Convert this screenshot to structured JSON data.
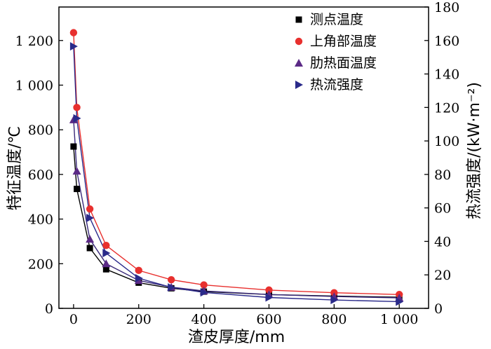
{
  "chart_data": {
    "type": "line",
    "xlabel": "渣皮厚度/mm",
    "ylabel_left": "特征温度/℃",
    "ylabel_right": "热流强度/(kW·m⁻²)",
    "x_ticks": [
      {
        "value": 0,
        "label": "0"
      },
      {
        "value": 200,
        "label": "200"
      },
      {
        "value": 400,
        "label": "400"
      },
      {
        "value": 600,
        "label": "600"
      },
      {
        "value": 800,
        "label": "800"
      },
      {
        "value": 1000,
        "label": "1 000"
      }
    ],
    "y_left_ticks": [
      {
        "value": 0,
        "label": "0"
      },
      {
        "value": 200,
        "label": "200"
      },
      {
        "value": 400,
        "label": "400"
      },
      {
        "value": 600,
        "label": "600"
      },
      {
        "value": 800,
        "label": "800"
      },
      {
        "value": 1000,
        "label": "1 000"
      },
      {
        "value": 1200,
        "label": "1 200"
      }
    ],
    "y_right_ticks": [
      {
        "value": 0,
        "label": "0"
      },
      {
        "value": 20,
        "label": "20"
      },
      {
        "value": 40,
        "label": "40"
      },
      {
        "value": 60,
        "label": "60"
      },
      {
        "value": 80,
        "label": "80"
      },
      {
        "value": 100,
        "label": "100"
      },
      {
        "value": 120,
        "label": "120"
      },
      {
        "value": 140,
        "label": "140"
      },
      {
        "value": 160,
        "label": "160"
      },
      {
        "value": 180,
        "label": "180"
      }
    ],
    "xlim": [
      -45,
      1090
    ],
    "ylim_left": [
      0,
      1350
    ],
    "ylim_right": [
      0,
      180
    ],
    "series": [
      {
        "name": "测点温度",
        "axis": "left",
        "marker": "square",
        "color": "#000000",
        "line_color": "#000000",
        "x": [
          0,
          10,
          50,
          100,
          200,
          300,
          400,
          600,
          800,
          1000
        ],
        "y": [
          725,
          535,
          270,
          175,
          115,
          90,
          75,
          62,
          55,
          50
        ]
      },
      {
        "name": "上角部温度",
        "axis": "left",
        "marker": "circle",
        "color": "#e8302e",
        "line_color": "#e8302e",
        "x": [
          0,
          10,
          50,
          100,
          200,
          300,
          400,
          600,
          800,
          1000
        ],
        "y": [
          1235,
          900,
          445,
          282,
          170,
          128,
          105,
          82,
          70,
          62
        ]
      },
      {
        "name": "肋热面温度",
        "axis": "left",
        "marker": "triangle-up",
        "color": "#5b2a86",
        "line_color": "#3a2a7a",
        "x": [
          0,
          10,
          50,
          100,
          200,
          300,
          400,
          600,
          800,
          1000
        ],
        "y": [
          845,
          615,
          310,
          200,
          125,
          95,
          78,
          62,
          53,
          47
        ]
      },
      {
        "name": "热流强度",
        "axis": "right",
        "marker": "triangle-right",
        "color": "#2a2a8a",
        "line_color": "#2a2a8a",
        "x": [
          0,
          10,
          50,
          100,
          200,
          300,
          400,
          600,
          800,
          1000
        ],
        "y": [
          156.5,
          113.5,
          54,
          33,
          18,
          12.5,
          9.5,
          6.5,
          5,
          4
        ]
      }
    ],
    "legend": {
      "position": "top-right"
    }
  }
}
